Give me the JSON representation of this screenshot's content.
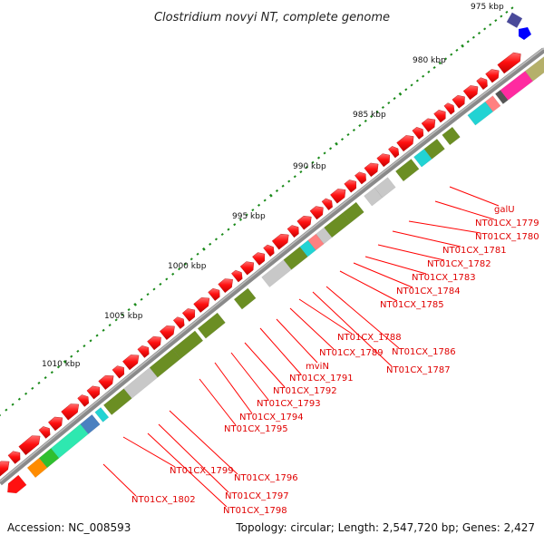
{
  "title": "Clostridium novyi NT, complete genome",
  "footer": {
    "accession": "Accession: NC_008593",
    "summary": "Topology: circular; Length: 2,547,720 bp; Genes: 2,427"
  },
  "ticks": [
    "975 kbp",
    "980 kbp",
    "985 kbp",
    "990 kbp",
    "995 kbp",
    "1000 kbp",
    "1005 kbp",
    "1010 kbp"
  ],
  "gene_labels": [
    "galU",
    "NT01CX_1779",
    "NT01CX_1780",
    "NT01CX_1781",
    "NT01CX_1782",
    "NT01CX_1783",
    "NT01CX_1784",
    "NT01CX_1785",
    "NT01CX_1786",
    "NT01CX_1787",
    "NT01CX_1788",
    "NT01CX_1789",
    "mviN",
    "NT01CX_1791",
    "NT01CX_1792",
    "NT01CX_1793",
    "NT01CX_1794",
    "NT01CX_1795",
    "NT01CX_1796",
    "NT01CX_1797",
    "NT01CX_1798",
    "NT01CX_1799",
    "NT01CX_1802"
  ],
  "colors": {
    "gene": "#ff1010",
    "backbone": "#8a8a8a",
    "olive": "#6b8e23",
    "grey_feature": "#c8c8c8",
    "cyan": "#22d3d3",
    "magenta": "#ff2aa0",
    "label": "#e00000"
  }
}
